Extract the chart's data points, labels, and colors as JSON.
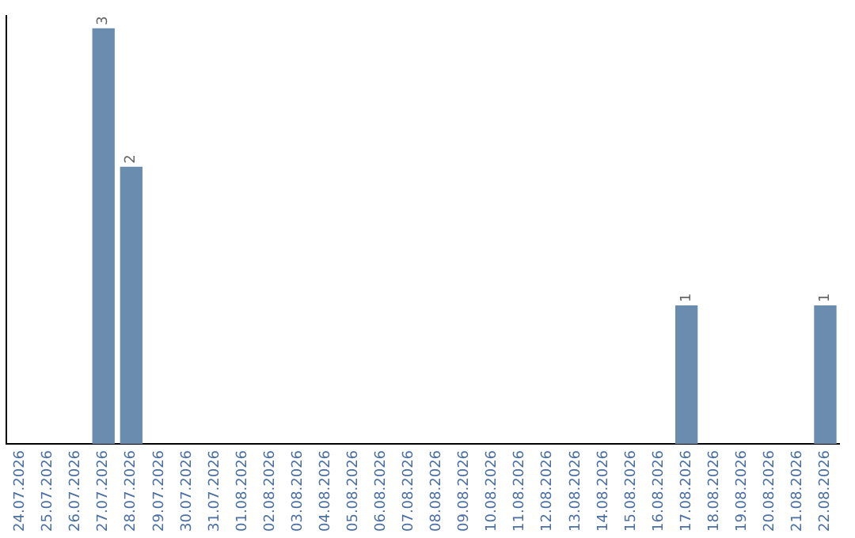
{
  "chart_data": {
    "type": "bar",
    "categories": [
      "24.07.2026",
      "25.07.2026",
      "26.07.2026",
      "27.07.2026",
      "28.07.2026",
      "29.07.2026",
      "30.07.2026",
      "31.07.2026",
      "01.08.2026",
      "02.08.2026",
      "03.08.2026",
      "04.08.2026",
      "05.08.2026",
      "06.08.2026",
      "07.08.2026",
      "08.08.2026",
      "09.08.2026",
      "10.08.2026",
      "11.08.2026",
      "12.08.2026",
      "13.08.2026",
      "14.08.2026",
      "15.08.2026",
      "16.08.2026",
      "17.08.2026",
      "18.08.2026",
      "19.08.2026",
      "20.08.2026",
      "21.08.2026",
      "22.08.2026"
    ],
    "values": [
      0,
      0,
      0,
      3,
      2,
      0,
      0,
      0,
      0,
      0,
      0,
      0,
      0,
      0,
      0,
      0,
      0,
      0,
      0,
      0,
      0,
      0,
      0,
      0,
      1,
      0,
      0,
      0,
      0,
      1
    ],
    "value_labels": [
      null,
      null,
      null,
      "3",
      "2",
      null,
      null,
      null,
      null,
      null,
      null,
      null,
      null,
      null,
      null,
      null,
      null,
      null,
      null,
      null,
      null,
      null,
      null,
      null,
      "1",
      null,
      null,
      null,
      null,
      "1"
    ],
    "color": "#6a8caf",
    "grid": false,
    "legend": false,
    "tick_labels": "x"
  }
}
